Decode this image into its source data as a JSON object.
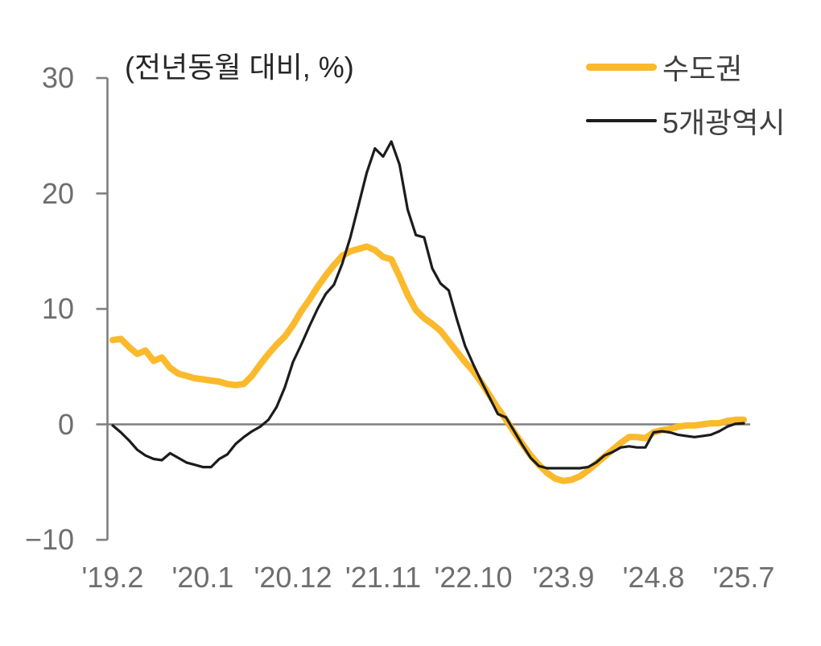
{
  "chart": {
    "subtitle": "(전년동월 대비, %)",
    "colors": {
      "background": "#FFFFFF",
      "axis": "#7F7F7F",
      "tick_label": "#6E6E6E",
      "subtitle_text": "#262626",
      "legend_text": "#3F3F3F"
    }
  },
  "chart_data": {
    "type": "line",
    "title": "",
    "subtitle": "(전년동월 대비, %)",
    "xlabel": "",
    "ylabel": "",
    "x_tick_labels": [
      "'19.2",
      "'20.1",
      "'20.12",
      "'21.11",
      "'22.10",
      "'23.9",
      "'24.8",
      "'25.7"
    ],
    "x_tick_indices": [
      0,
      11,
      22,
      33,
      44,
      55,
      66,
      77
    ],
    "x_frequency": "monthly",
    "n_points": 78,
    "y_ticks": [
      30,
      20,
      10,
      0,
      -10
    ],
    "ylim": [
      -10,
      30
    ],
    "zero_line": true,
    "grid": false,
    "legend_position": "top-right",
    "series": [
      {
        "name": "수도권",
        "color": "#FBB92C",
        "stroke_width": 8,
        "values": [
          7.3,
          7.4,
          6.7,
          6.1,
          6.4,
          5.5,
          5.8,
          4.9,
          4.4,
          4.2,
          4.0,
          3.9,
          3.8,
          3.7,
          3.5,
          3.4,
          3.5,
          4.2,
          5.2,
          6.1,
          6.9,
          7.6,
          8.6,
          9.8,
          10.8,
          11.9,
          12.9,
          13.8,
          14.6,
          15.0,
          15.2,
          15.4,
          15.1,
          14.5,
          14.3,
          12.8,
          11.2,
          9.9,
          9.2,
          8.7,
          8.1,
          7.2,
          6.3,
          5.4,
          4.6,
          3.6,
          2.5,
          1.4,
          0.4,
          -0.7,
          -1.7,
          -2.7,
          -3.5,
          -4.2,
          -4.7,
          -4.9,
          -4.8,
          -4.5,
          -4.0,
          -3.4,
          -2.8,
          -2.2,
          -1.6,
          -1.1,
          -1.1,
          -1.2,
          -0.7,
          -0.5,
          -0.4,
          -0.2,
          -0.1,
          -0.1,
          0.0,
          0.1,
          0.1,
          0.3,
          0.4,
          0.4
        ]
      },
      {
        "name": "5개광역시",
        "color": "#1C1C1C",
        "stroke_width": 3.2,
        "values": [
          -0.1,
          -0.7,
          -1.4,
          -2.2,
          -2.7,
          -3.0,
          -3.1,
          -2.5,
          -2.9,
          -3.3,
          -3.5,
          -3.7,
          -3.7,
          -3.0,
          -2.6,
          -1.7,
          -1.1,
          -0.6,
          -0.2,
          0.4,
          1.5,
          3.2,
          5.4,
          6.9,
          8.5,
          10.0,
          11.3,
          12.1,
          13.9,
          16.2,
          19.0,
          21.8,
          23.9,
          23.2,
          24.5,
          22.5,
          18.6,
          16.4,
          16.2,
          13.5,
          12.2,
          11.6,
          9.1,
          6.8,
          5.2,
          3.7,
          2.3,
          0.9,
          0.6,
          -0.6,
          -1.8,
          -2.9,
          -3.6,
          -3.8,
          -3.8,
          -3.8,
          -3.8,
          -3.8,
          -3.7,
          -3.3,
          -2.7,
          -2.4,
          -2.0,
          -1.9,
          -2.0,
          -2.0,
          -0.7,
          -0.6,
          -0.7,
          -0.9,
          -1.0,
          -1.1,
          -1.0,
          -0.9,
          -0.6,
          -0.2,
          0.05,
          0.1
        ]
      }
    ]
  }
}
